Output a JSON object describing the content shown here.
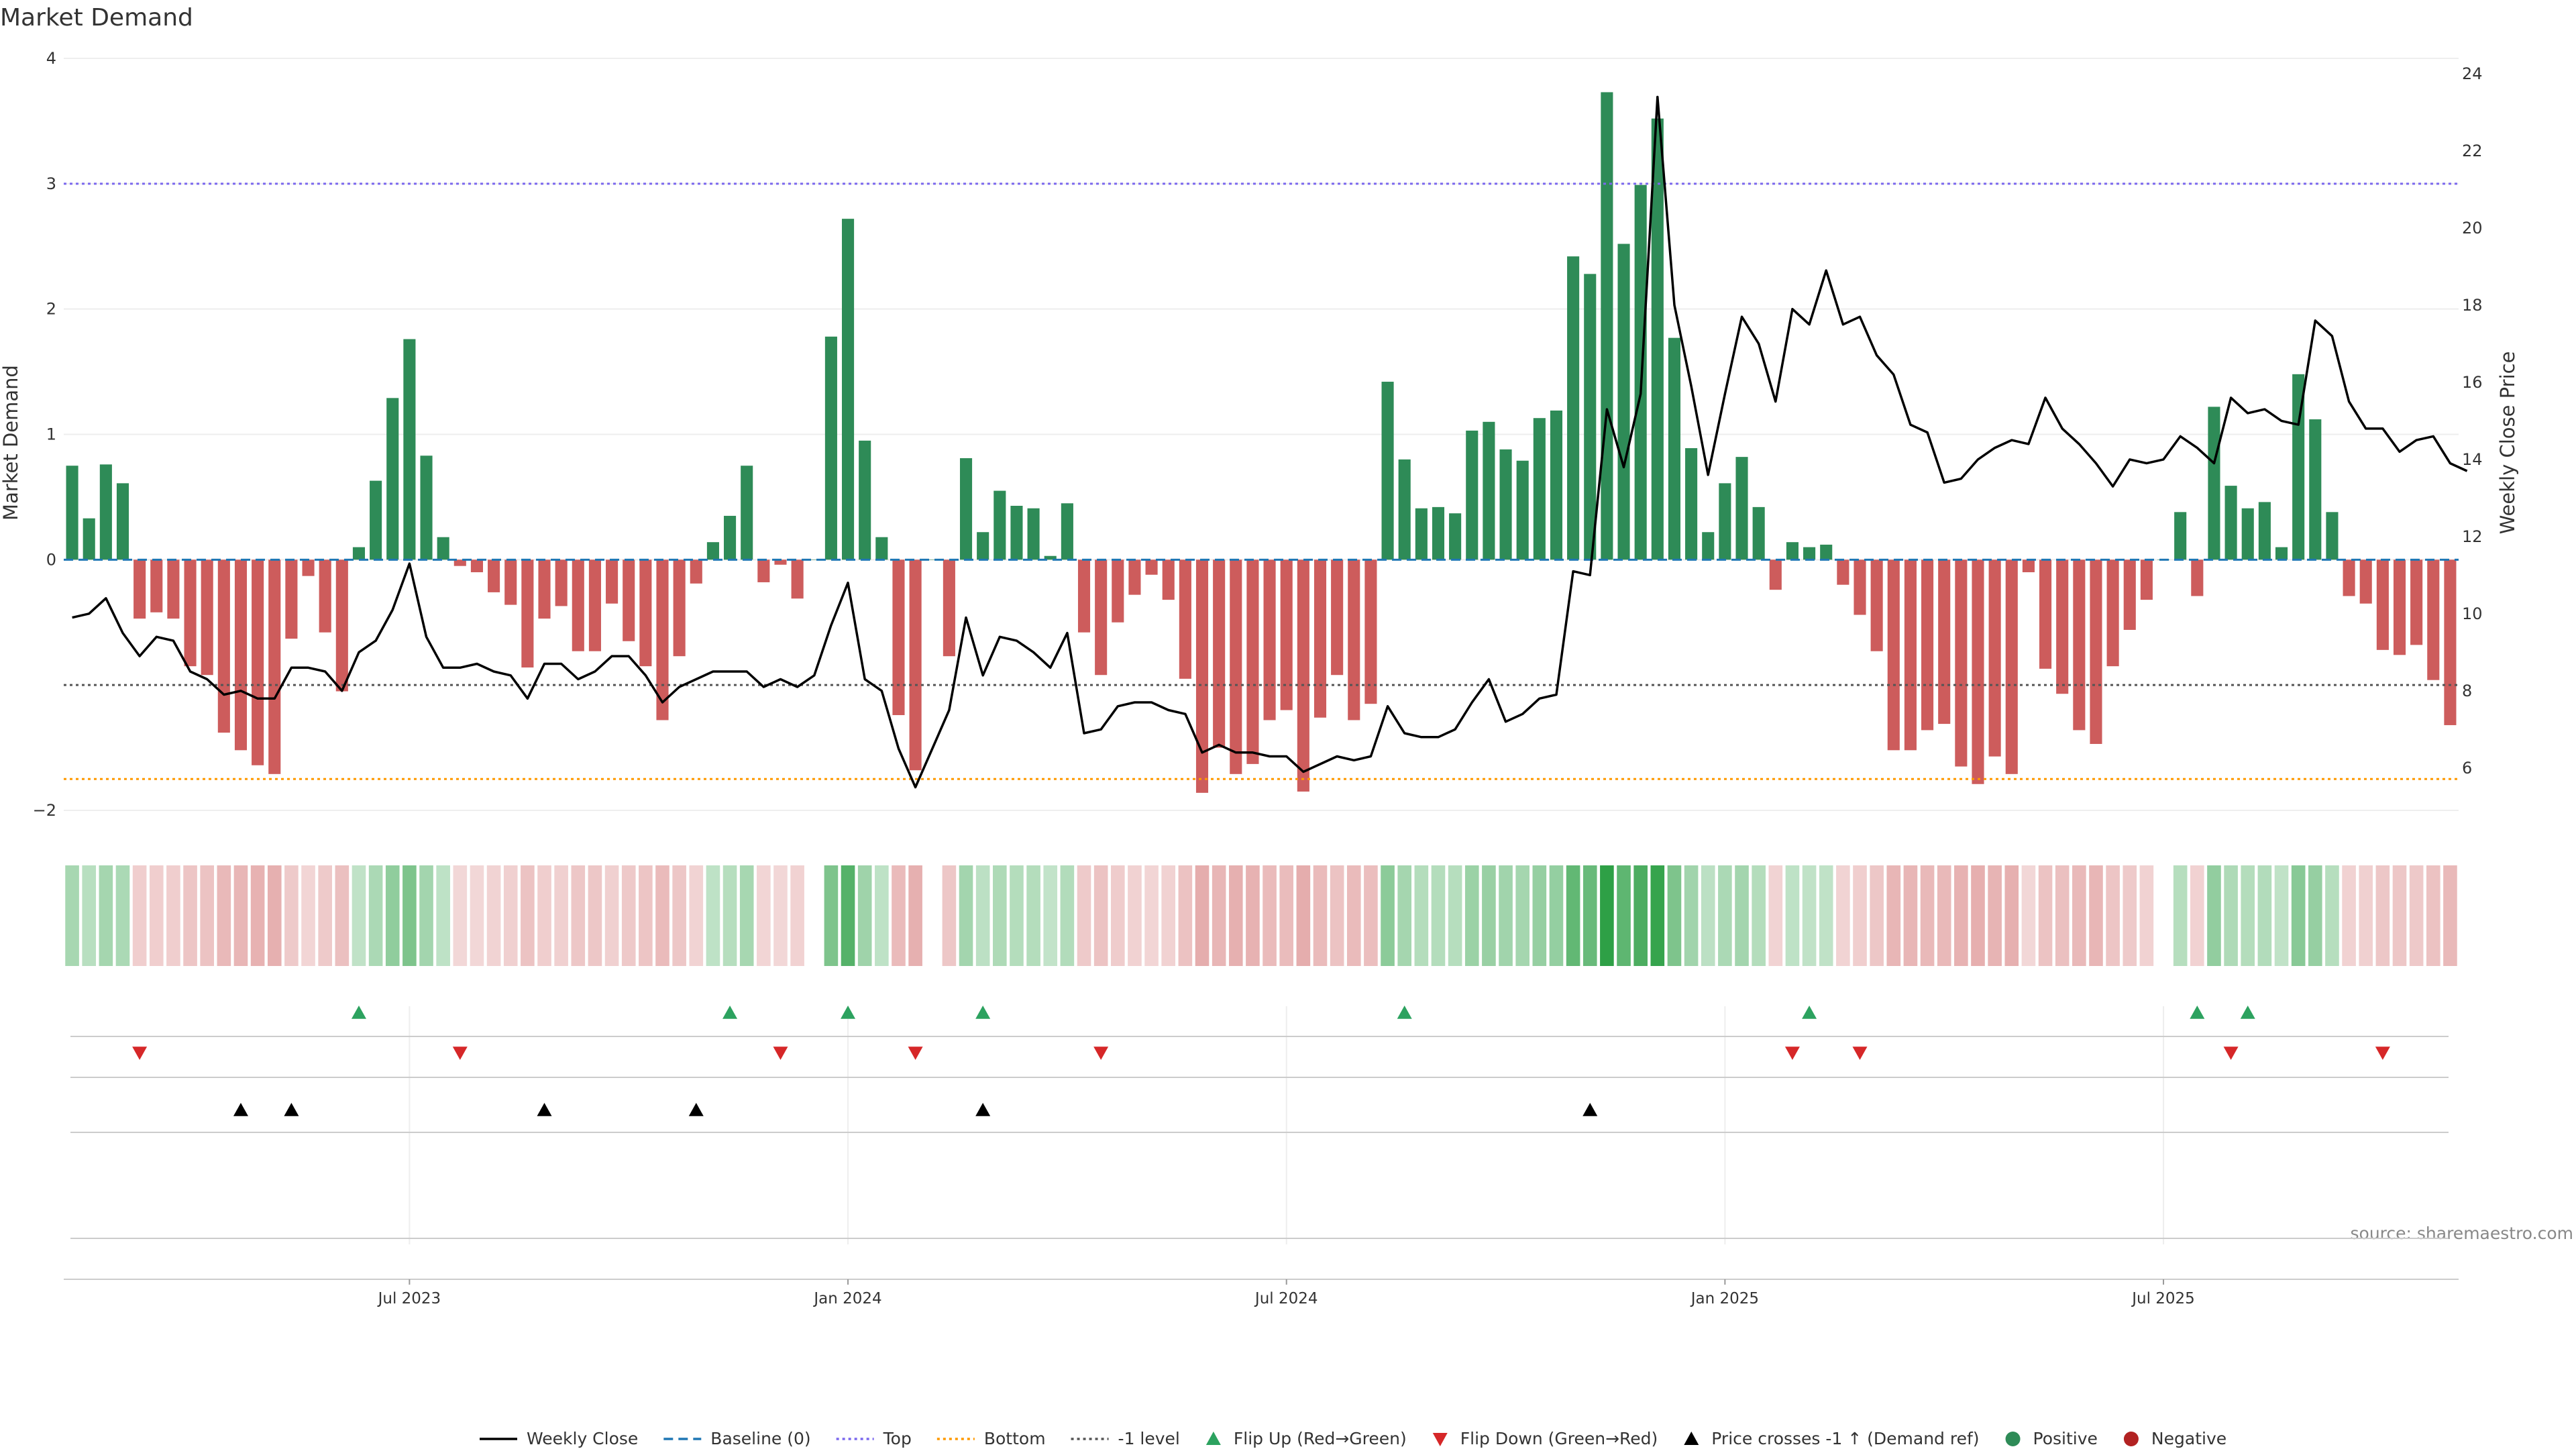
{
  "chart_data": {
    "type": "bar",
    "title": "Market Demand",
    "ylabel_left": "Market Demand",
    "ylabel_right": "Weekly Close Price",
    "ylim_left": [
      -2,
      4
    ],
    "yticks_left": [
      "4",
      "3",
      "2",
      "1",
      "0",
      "−2"
    ],
    "yticks_left_vals": [
      4,
      3,
      2,
      1,
      0,
      -2
    ],
    "ylim_right": [
      4.9,
      24.4
    ],
    "yticks_right": [
      "24",
      "22",
      "20",
      "18",
      "16",
      "14",
      "12",
      "10",
      "8",
      "6"
    ],
    "yticks_right_vals": [
      24,
      22,
      20,
      18,
      16,
      14,
      12,
      10,
      8,
      6
    ],
    "x_ticks": [
      "Jul 2023",
      "Jan 2024",
      "Jul 2024",
      "Jan 2025",
      "Jul 2025"
    ],
    "x_tick_weeks": [
      20,
      46,
      72,
      98,
      124
    ],
    "reference_lines": [
      {
        "name": "Top",
        "value": 3,
        "color": "#7b68ee",
        "style": "dotted"
      },
      {
        "name": "Bottom",
        "value": -1.75,
        "color": "#ff9900",
        "style": "dotted"
      },
      {
        "name": "-1 level",
        "value": -1,
        "color": "#555555",
        "style": "dotted"
      },
      {
        "name": "Baseline (0)",
        "value": 0,
        "color": "#1f77b4",
        "style": "dashed"
      }
    ],
    "series": [
      {
        "name": "Market Demand",
        "kind": "bar",
        "values": [
          0.75,
          0.33,
          0.76,
          0.61,
          -0.47,
          -0.42,
          -0.47,
          -0.85,
          -0.92,
          -1.38,
          -1.52,
          -1.64,
          -1.71,
          -0.63,
          -0.13,
          -0.58,
          -1.05,
          0.1,
          0.63,
          1.29,
          1.76,
          0.83,
          0.18,
          -0.05,
          -0.1,
          -0.26,
          -0.36,
          -0.86,
          -0.47,
          -0.37,
          -0.73,
          -0.73,
          -0.35,
          -0.65,
          -0.85,
          -1.28,
          -0.77,
          -0.19,
          0.14,
          0.35,
          0.75,
          -0.18,
          -0.04,
          -0.31,
          0.0,
          1.78,
          2.72,
          0.95,
          0.18,
          -1.24,
          -1.68,
          0.0,
          -0.77,
          0.81,
          0.22,
          0.55,
          0.43,
          0.41,
          0.03,
          0.45,
          -0.58,
          -0.92,
          -0.5,
          -0.28,
          -0.12,
          -0.32,
          -0.95,
          -1.86,
          -1.5,
          -1.71,
          -1.63,
          -1.28,
          -1.2,
          -1.85,
          -1.26,
          -0.92,
          -1.28,
          -1.15,
          1.42,
          0.8,
          0.41,
          0.42,
          0.37,
          1.03,
          1.1,
          0.88,
          0.79,
          1.13,
          1.19,
          2.42,
          2.28,
          3.73,
          2.52,
          2.99,
          3.52,
          1.77,
          0.89,
          0.22,
          0.61,
          0.82,
          0.42,
          -0.24,
          0.14,
          0.1,
          0.12,
          -0.2,
          -0.44,
          -0.73,
          -1.52,
          -1.52,
          -1.36,
          -1.31,
          -1.65,
          -1.79,
          -1.57,
          -1.71,
          -0.1,
          -0.87,
          -1.07,
          -1.36,
          -1.47,
          -0.85,
          -0.56,
          -0.32,
          0.0,
          0.38,
          -0.29,
          1.22,
          0.59,
          0.41,
          0.46,
          0.1,
          1.48,
          1.12,
          0.38,
          -0.29,
          -0.35,
          -0.72,
          -0.76,
          -0.68,
          -0.96,
          -1.32
        ]
      },
      {
        "name": "Weekly Close",
        "kind": "line",
        "color": "#000000",
        "values": [
          9.9,
          10.0,
          10.4,
          9.5,
          8.9,
          9.4,
          9.3,
          8.5,
          8.3,
          7.9,
          8.0,
          7.8,
          7.8,
          8.6,
          8.6,
          8.5,
          8.0,
          9.0,
          9.3,
          10.1,
          11.3,
          9.4,
          8.6,
          8.6,
          8.7,
          8.5,
          8.4,
          7.8,
          8.7,
          8.7,
          8.3,
          8.5,
          8.9,
          8.9,
          8.4,
          7.7,
          8.1,
          8.3,
          8.5,
          8.5,
          8.5,
          8.1,
          8.3,
          8.1,
          8.4,
          9.7,
          10.8,
          8.3,
          8.0,
          6.5,
          5.5,
          6.5,
          7.5,
          9.9,
          8.4,
          9.4,
          9.3,
          9.0,
          8.6,
          9.5,
          6.9,
          7.0,
          7.6,
          7.7,
          7.7,
          7.5,
          7.4,
          6.4,
          6.6,
          6.4,
          6.4,
          6.3,
          6.3,
          5.9,
          6.1,
          6.3,
          6.2,
          6.3,
          7.6,
          6.9,
          6.8,
          6.8,
          7.0,
          7.7,
          8.3,
          7.2,
          7.4,
          7.8,
          7.9,
          11.1,
          11.0,
          15.3,
          13.8,
          15.7,
          23.4,
          18.0,
          15.9,
          13.6,
          15.7,
          17.7,
          17.0,
          15.5,
          17.9,
          17.5,
          18.9,
          17.5,
          17.7,
          16.7,
          16.2,
          14.9,
          14.7,
          13.4,
          13.5,
          14.0,
          14.3,
          14.5,
          14.4,
          15.6,
          14.8,
          14.4,
          13.9,
          13.3,
          14.0,
          13.9,
          14.0,
          14.6,
          14.3,
          13.9,
          15.6,
          15.2,
          15.3,
          15.0,
          14.9,
          17.6,
          17.2,
          15.5,
          14.8,
          14.8,
          14.2,
          14.5,
          14.6,
          13.9,
          13.7
        ]
      }
    ],
    "flip_up_weeks": [
      17,
      39,
      46,
      54,
      79,
      103,
      126,
      129
    ],
    "flip_down_weeks": [
      4,
      23,
      42,
      50,
      61,
      102,
      106,
      128,
      137
    ],
    "price_cross_weeks": [
      10,
      13,
      28,
      37,
      54,
      90
    ],
    "legend": [
      {
        "label": "Weekly Close",
        "marker": "solid-line",
        "color": "#000000"
      },
      {
        "label": "Baseline (0)",
        "marker": "dashed-line",
        "color": "#1f77b4"
      },
      {
        "label": "Top",
        "marker": "dotted-line",
        "color": "#7b68ee"
      },
      {
        "label": "Bottom",
        "marker": "dotted-line",
        "color": "#ff9900"
      },
      {
        "label": "-1 level",
        "marker": "dotted-line",
        "color": "#555555"
      },
      {
        "label": "Flip Up (Red→Green)",
        "marker": "triangle-up",
        "color": "#2ca25f"
      },
      {
        "label": "Flip Down (Green→Red)",
        "marker": "triangle-down",
        "color": "#d62728"
      },
      {
        "label": "Price crosses -1 ↑ (Demand ref)",
        "marker": "triangle-up",
        "color": "#000000"
      },
      {
        "label": "Positive",
        "marker": "circle",
        "color": "#2e8b57"
      },
      {
        "label": "Negative",
        "marker": "circle",
        "color": "#b22222"
      }
    ],
    "legend_placement": "bottom-center",
    "source_note": "source: sharemaestro.com",
    "colors": {
      "positive_bar": "#2e8b57",
      "negative_bar": "#cd5c5c",
      "flip_up": "#2ca25f",
      "flip_down": "#d62728"
    }
  }
}
